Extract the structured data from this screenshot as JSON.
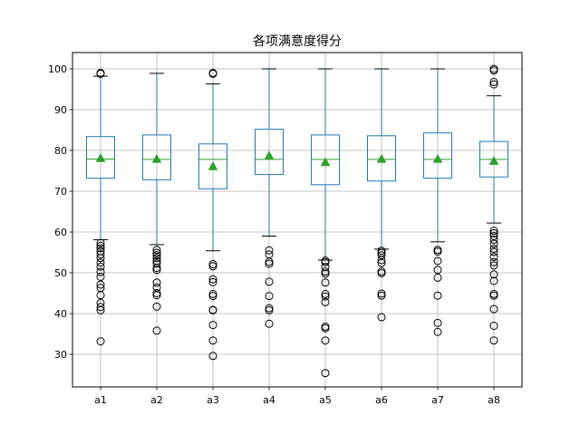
{
  "chart_data": {
    "type": "box",
    "title": "各项满意度得分",
    "xlabel": "",
    "ylabel": "",
    "ylim": [
      22,
      104
    ],
    "yticks": [
      30,
      40,
      50,
      60,
      70,
      80,
      90,
      100
    ],
    "grid": true,
    "show_means": true,
    "colors": {
      "box": "#1f77b4",
      "median": "#2ca02c",
      "mean": "#2ca02c",
      "grid": "#b0b0b0",
      "flier": "#000000"
    },
    "categories": [
      "a1",
      "a2",
      "a3",
      "a4",
      "a5",
      "a6",
      "a7",
      "a8"
    ],
    "boxes": [
      {
        "name": "a1",
        "q1": 73.2,
        "median": 77.9,
        "q3": 83.4,
        "mean": 78.0,
        "whisker_low": 58.1,
        "whisker_high": 98.2,
        "fliers": [
          33.2,
          40.8,
          41.6,
          42.6,
          44.5,
          46.3,
          47.1,
          49.0,
          50.2,
          51.5,
          52.5,
          53.6,
          54.5,
          55.3,
          56.0,
          56.6,
          57.3,
          98.8,
          99.0
        ]
      },
      {
        "name": "a2",
        "q1": 72.8,
        "median": 77.8,
        "q3": 83.8,
        "mean": 77.8,
        "whisker_low": 56.9,
        "whisker_high": 98.9,
        "fliers": [
          35.8,
          41.7,
          44.5,
          45.0,
          46.4,
          47.6,
          50.7,
          51.2,
          52.3,
          52.9,
          53.6,
          54.3,
          54.9,
          55.6
        ]
      },
      {
        "name": "a3",
        "q1": 70.6,
        "median": 77.8,
        "q3": 81.6,
        "mean": 76.0,
        "whisker_low": 55.4,
        "whisker_high": 96.3,
        "fliers": [
          29.6,
          33.4,
          37.2,
          40.8,
          40.9,
          44.3,
          44.8,
          47.7,
          48.4,
          51.6,
          52.1,
          98.8,
          99.0
        ]
      },
      {
        "name": "a4",
        "q1": 74.1,
        "median": 77.8,
        "q3": 85.2,
        "mean": 78.6,
        "whisker_low": 59.0,
        "whisker_high": 100.0,
        "fliers": [
          37.5,
          40.8,
          41.3,
          44.3,
          47.8,
          52.2,
          52.7,
          54.5,
          55.5
        ]
      },
      {
        "name": "a5",
        "q1": 71.6,
        "median": 77.8,
        "q3": 83.8,
        "mean": 77.0,
        "whisker_low": 53.1,
        "whisker_high": 100.0,
        "fliers": [
          25.4,
          33.4,
          36.4,
          36.8,
          42.8,
          44.2,
          44.8,
          47.6,
          49.8,
          50.3,
          51.4,
          52.6,
          53.0
        ]
      },
      {
        "name": "a6",
        "q1": 72.5,
        "median": 77.8,
        "q3": 83.6,
        "mean": 77.8,
        "whisker_low": 55.8,
        "whisker_high": 100.0,
        "fliers": [
          39.1,
          44.4,
          44.9,
          49.9,
          50.3,
          52.4,
          53.1,
          54.3,
          54.9,
          55.4
        ]
      },
      {
        "name": "a7",
        "q1": 73.2,
        "median": 77.8,
        "q3": 84.3,
        "mean": 77.8,
        "whisker_low": 57.6,
        "whisker_high": 100.0,
        "fliers": [
          35.5,
          37.7,
          44.4,
          48.8,
          50.7,
          52.9,
          55.2,
          55.6
        ]
      },
      {
        "name": "a8",
        "q1": 73.5,
        "median": 77.8,
        "q3": 82.2,
        "mean": 77.3,
        "whisker_low": 62.2,
        "whisker_high": 93.4,
        "fliers": [
          33.4,
          37.0,
          41.1,
          44.4,
          44.8,
          48.0,
          49.6,
          51.8,
          52.6,
          53.9,
          55.1,
          55.9,
          57.1,
          58.1,
          59.0,
          59.7,
          60.3,
          96.2,
          96.8,
          99.6,
          100.0
        ]
      }
    ]
  }
}
